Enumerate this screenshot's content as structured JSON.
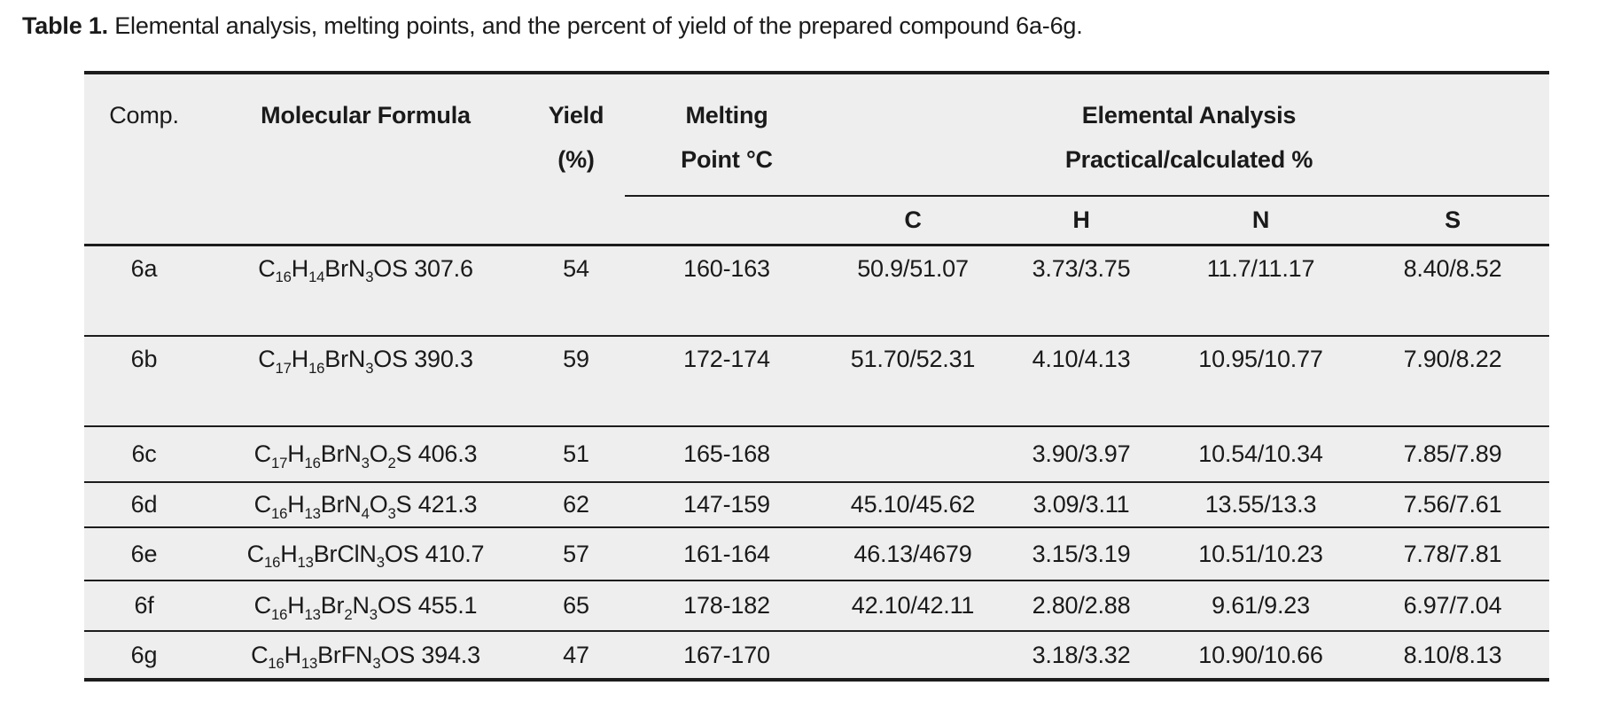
{
  "title": {
    "label": "Table 1.",
    "text": " Elemental analysis, melting points, and the percent of yield of the prepared compound 6a-6g."
  },
  "colors": {
    "page_background": "#ffffff",
    "table_background": "#eeeeee",
    "rule": "#1c1c1c",
    "text": "#1a1a1a"
  },
  "table": {
    "columns": {
      "comp": "Comp.",
      "formula": "Molecular Formula",
      "yield_line1": "Yield",
      "yield_line2": "(%)",
      "melting_line1": "Melting",
      "melting_line2": "Point °C",
      "elemental_line1": "Elemental Analysis",
      "elemental_line2": "Practical/calculated %",
      "sub_headers": [
        "C",
        "H",
        "N",
        "S"
      ]
    },
    "rows": [
      {
        "comp": "6a",
        "formula": "C~16~H~14~BrN~3~OS 307.6",
        "yield": "54",
        "melting": "160-163",
        "c": "50.9/51.07",
        "h": "3.73/3.75",
        "n": "11.7/11.17",
        "s": "8.40/8.52"
      },
      {
        "comp": "6b",
        "formula": "C~17~H~16~BrN~3~OS 390.3",
        "yield": "59",
        "melting": "172-174",
        "c": "51.70/52.31",
        "h": "4.10/4.13",
        "n": "10.95/10.77",
        "s": "7.90/8.22"
      },
      {
        "comp": "6c",
        "formula": "C~17~H~16~BrN~3~O~2~S 406.3",
        "yield": "51",
        "melting": "165-168",
        "c": "",
        "h": "3.90/3.97",
        "n": "10.54/10.34",
        "s": "7.85/7.89"
      },
      {
        "comp": "6d",
        "formula": "C~16~H~13~BrN~4~O~3~S 421.3",
        "yield": "62",
        "melting": "147-159",
        "c": "45.10/45.62",
        "h": "3.09/3.11",
        "n": "13.55/13.3",
        "s": "7.56/7.61"
      },
      {
        "comp": "6e",
        "formula": "C~16~H~13~BrClN~3~OS 410.7",
        "yield": "57",
        "melting": "161-164",
        "c": "46.13/4679",
        "h": "3.15/3.19",
        "n": "10.51/10.23",
        "s": "7.78/7.81"
      },
      {
        "comp": "6f",
        "formula": "C~16~H~13~Br~2~N~3~OS 455.1",
        "yield": "65",
        "melting": "178-182",
        "c": "42.10/42.11",
        "h": "2.80/2.88",
        "n": "9.61/9.23",
        "s": "6.97/7.04"
      },
      {
        "comp": "6g",
        "formula": "C~16~H~13~BrFN~3~OS 394.3",
        "yield": "47",
        "melting": "167-170",
        "c": "",
        "h": "3.18/3.32",
        "n": "10.90/10.66",
        "s": "8.10/8.13"
      }
    ]
  }
}
